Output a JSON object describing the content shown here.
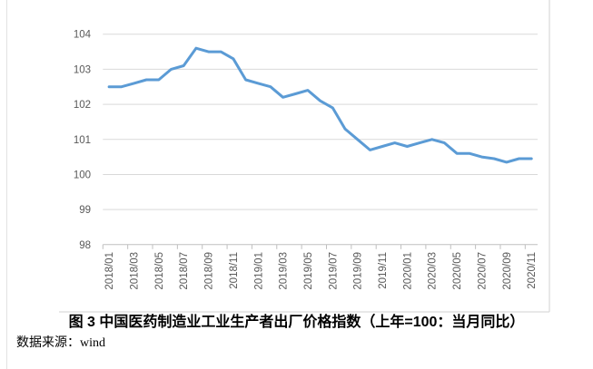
{
  "figure": {
    "caption": "图 3  中国医药制造业工业生产者出厂价格指数（上年=100：当月同比）",
    "source": "数据来源：wind"
  },
  "chart_data": {
    "type": "line",
    "title": "",
    "categories": [
      "2018/01",
      "2018/02",
      "2018/03",
      "2018/04",
      "2018/05",
      "2018/06",
      "2018/07",
      "2018/08",
      "2018/09",
      "2018/10",
      "2018/11",
      "2018/12",
      "2019/01",
      "2019/02",
      "2019/03",
      "2019/04",
      "2019/05",
      "2019/06",
      "2019/07",
      "2019/08",
      "2019/09",
      "2019/10",
      "2019/11",
      "2019/12",
      "2020/01",
      "2020/02",
      "2020/03",
      "2020/04",
      "2020/05",
      "2020/06",
      "2020/07",
      "2020/08",
      "2020/09",
      "2020/10",
      "2020/11"
    ],
    "series": [
      {
        "name": "中国医药制造业工业生产者出厂价格指数",
        "values": [
          102.5,
          102.5,
          102.6,
          102.7,
          102.7,
          103.0,
          103.1,
          103.6,
          103.5,
          103.5,
          103.3,
          102.7,
          102.6,
          102.5,
          102.2,
          102.3,
          102.4,
          102.1,
          101.9,
          101.3,
          101.0,
          100.7,
          100.8,
          100.9,
          100.8,
          100.9,
          101.0,
          100.9,
          100.6,
          100.6,
          100.5,
          100.45,
          100.35,
          100.45,
          100.45
        ]
      }
    ],
    "xlabel": "",
    "ylabel": "",
    "ylim": [
      98,
      104
    ],
    "yticks": [
      98,
      99,
      100,
      101,
      102,
      103,
      104
    ],
    "x_label_every": 2,
    "x_label_rotation": -90,
    "grid": "horizontal",
    "legend": "none",
    "line_color": "#5B9BD5",
    "gridline_color": "#D9D9D9",
    "axis_color": "#BFBFBF",
    "frame_color": "#D9D9D9",
    "tick_label_color": "#595959"
  }
}
